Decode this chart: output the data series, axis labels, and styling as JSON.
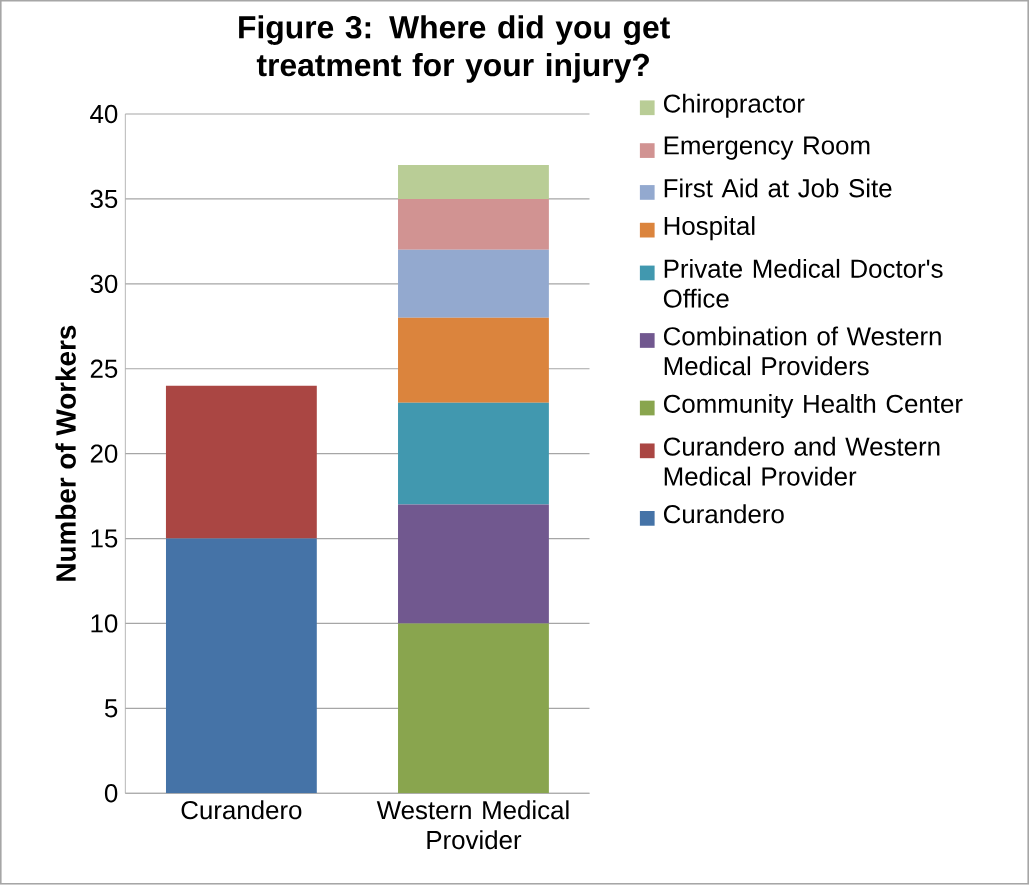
{
  "chart_data": {
    "type": "bar",
    "title": "Figure 3: Where did you get treatment for your injury?",
    "ylabel": "Number of Workers",
    "categories": [
      "Curandero",
      "Western Medical Provider"
    ],
    "stacked": true,
    "series": [
      {
        "name": "Curandero",
        "color": "#4573a7",
        "values": [
          15,
          null
        ]
      },
      {
        "name": "Curandero and Western Medical Provider",
        "color": "#aa4643",
        "values": [
          9,
          null
        ]
      },
      {
        "name": "Community Health Center",
        "color": "#89a54e",
        "values": [
          null,
          10
        ]
      },
      {
        "name": "Combination of Western Medical Providers",
        "color": "#71588f",
        "values": [
          null,
          7
        ]
      },
      {
        "name": "Private Medical Doctor's Office",
        "color": "#4198af",
        "values": [
          null,
          6
        ]
      },
      {
        "name": "Hospital",
        "color": "#db843d",
        "values": [
          null,
          5
        ]
      },
      {
        "name": "First Aid at Job Site",
        "color": "#93a9cf",
        "values": [
          null,
          4
        ]
      },
      {
        "name": "Emergency Room",
        "color": "#d19392",
        "values": [
          null,
          3
        ]
      },
      {
        "name": "Chiropractor",
        "color": "#b9cd96",
        "values": [
          null,
          2
        ]
      }
    ],
    "ylim": [
      0,
      40
    ],
    "yticks": [
      0,
      5,
      10,
      15,
      20,
      25,
      30,
      35,
      40
    ],
    "grid": "y",
    "legend": "right"
  }
}
